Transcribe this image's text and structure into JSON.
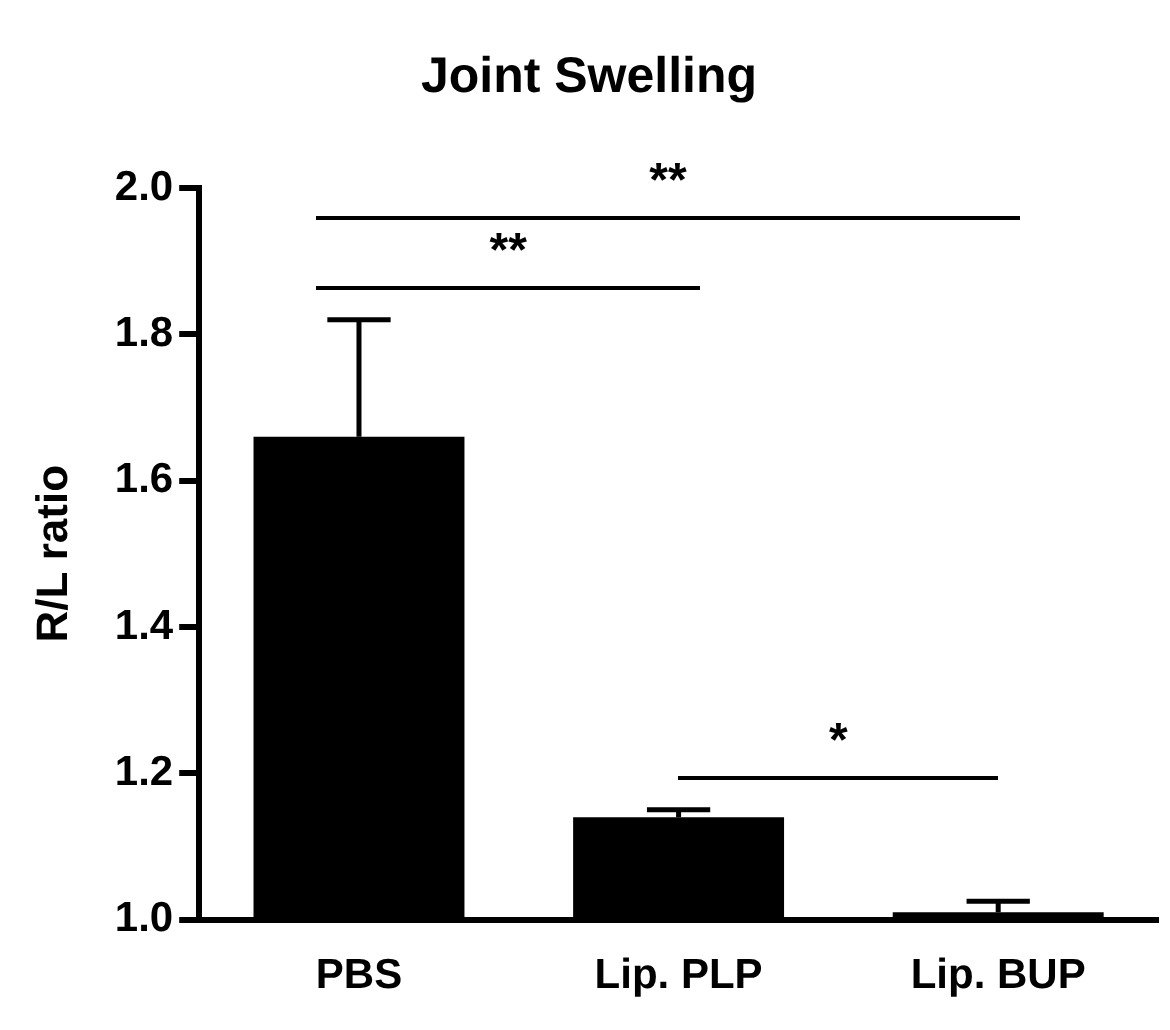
{
  "chart_data": {
    "type": "bar",
    "title": "Joint Swelling",
    "ylabel": "R/L ratio",
    "categories": [
      "PBS",
      "Lip. PLP",
      "Lip. BUP"
    ],
    "values": [
      1.66,
      1.14,
      1.01
    ],
    "errors": [
      [
        1.66,
        1.82
      ],
      [
        1.14,
        1.15
      ],
      [
        1.01,
        1.025
      ]
    ],
    "color": "#000000",
    "ylim": [
      1.0,
      2.0
    ],
    "yticks": [
      {
        "value": 1.0,
        "label": "1.0"
      },
      {
        "value": 1.2,
        "label": "1.2"
      },
      {
        "value": 1.4,
        "label": "1.4"
      },
      {
        "value": 1.6,
        "label": "1.6"
      },
      {
        "value": 1.8,
        "label": "1.8"
      },
      {
        "value": 2.0,
        "label": "2.0"
      }
    ],
    "annotations": [
      "**",
      "**",
      "*"
    ],
    "grid": false,
    "legend": false
  }
}
